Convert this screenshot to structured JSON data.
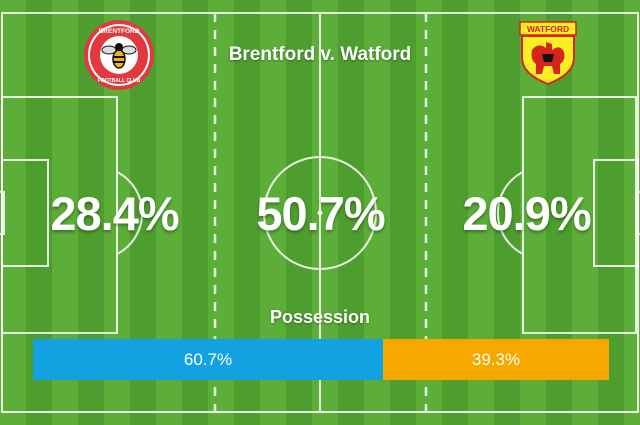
{
  "match": {
    "title": "Brentford v. Watford"
  },
  "zones": [
    {
      "id": "left-third",
      "value": "28.4%"
    },
    {
      "id": "middle-third",
      "value": "50.7%"
    },
    {
      "id": "right-third",
      "value": "20.9%"
    }
  ],
  "possession": {
    "label": "Possession",
    "home": {
      "display": "60.7%",
      "fraction": 0.607,
      "color": "#13a2e1"
    },
    "away": {
      "display": "39.3%",
      "fraction": 0.393,
      "color": "#f6a800"
    }
  },
  "badges": {
    "home": {
      "icon": "brentford-crest-icon",
      "ring_top": "BRENTFORD",
      "ring_bottom": "FOOTBALL CLUB"
    },
    "away": {
      "icon": "watford-crest-icon",
      "banner": "WATFORD"
    }
  }
}
